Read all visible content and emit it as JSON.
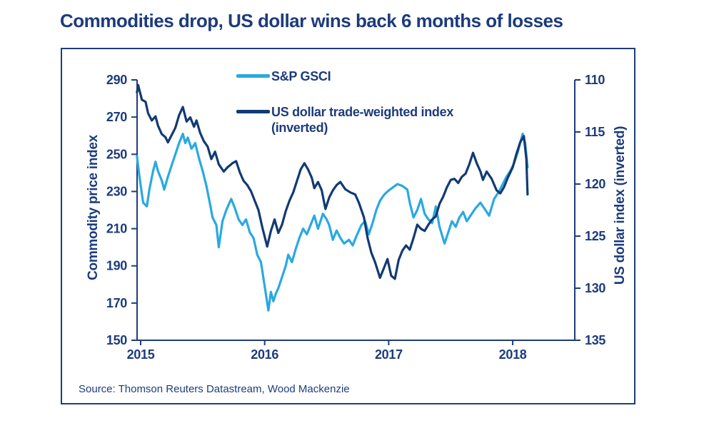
{
  "chart_data": {
    "type": "line",
    "title": "Commodities drop, US dollar wins back 6 months of losses",
    "source": "Source: Thomson Reuters Datastream, Wood Mackenzie",
    "grid": false,
    "legend_position": "top-center-inside",
    "x_axis": {
      "ticks": [
        2015,
        2016,
        2017,
        2018
      ],
      "range": [
        2014.97,
        2018.5
      ]
    },
    "left_axis": {
      "label": "Commodity price index",
      "ticks": [
        290,
        270,
        250,
        230,
        210,
        190,
        170,
        150
      ],
      "range": [
        150,
        290
      ]
    },
    "right_axis": {
      "label": "US dollar index (inverted)",
      "ticks": [
        110,
        115,
        120,
        125,
        130,
        135
      ],
      "range": [
        110,
        135
      ],
      "inverted": true
    },
    "legend": {
      "items": [
        {
          "label": "S&P GSCI",
          "label2": ""
        },
        {
          "label": "US dollar trade-weighted index",
          "label2": "(inverted)"
        }
      ]
    },
    "colors": {
      "gsci_line": "#29a9e1",
      "usd_line": "#123a73",
      "text_navy": "#1c3b7c",
      "axis_navy": "#1e3c7b",
      "card_border": "#1e3c7b"
    },
    "series": [
      {
        "name": "S&P GSCI",
        "axis": "left",
        "color": "#29a9e1",
        "points": [
          [
            2014.97,
            249
          ],
          [
            2014.99,
            238
          ],
          [
            2015.02,
            224
          ],
          [
            2015.05,
            222
          ],
          [
            2015.07,
            231
          ],
          [
            2015.1,
            241
          ],
          [
            2015.12,
            246
          ],
          [
            2015.14,
            241
          ],
          [
            2015.17,
            236
          ],
          [
            2015.19,
            231
          ],
          [
            2015.22,
            238
          ],
          [
            2015.25,
            244
          ],
          [
            2015.28,
            250
          ],
          [
            2015.31,
            256
          ],
          [
            2015.34,
            261
          ],
          [
            2015.36,
            256
          ],
          [
            2015.38,
            259
          ],
          [
            2015.41,
            253
          ],
          [
            2015.44,
            256
          ],
          [
            2015.47,
            248
          ],
          [
            2015.5,
            241
          ],
          [
            2015.53,
            233
          ],
          [
            2015.56,
            223
          ],
          [
            2015.58,
            216
          ],
          [
            2015.61,
            212
          ],
          [
            2015.63,
            200
          ],
          [
            2015.66,
            214
          ],
          [
            2015.69,
            220
          ],
          [
            2015.73,
            226
          ],
          [
            2015.76,
            221
          ],
          [
            2015.79,
            215
          ],
          [
            2015.82,
            212
          ],
          [
            2015.85,
            215
          ],
          [
            2015.88,
            208
          ],
          [
            2015.91,
            205
          ],
          [
            2015.94,
            196
          ],
          [
            2015.97,
            192
          ],
          [
            2016.0,
            179
          ],
          [
            2016.03,
            166
          ],
          [
            2016.05,
            176
          ],
          [
            2016.07,
            171
          ],
          [
            2016.09,
            175
          ],
          [
            2016.11,
            178
          ],
          [
            2016.14,
            184
          ],
          [
            2016.17,
            190
          ],
          [
            2016.19,
            196
          ],
          [
            2016.22,
            192
          ],
          [
            2016.25,
            199
          ],
          [
            2016.28,
            205
          ],
          [
            2016.31,
            210
          ],
          [
            2016.34,
            207
          ],
          [
            2016.37,
            212
          ],
          [
            2016.4,
            217
          ],
          [
            2016.43,
            210
          ],
          [
            2016.45,
            214
          ],
          [
            2016.47,
            218
          ],
          [
            2016.5,
            215
          ],
          [
            2016.52,
            212
          ],
          [
            2016.55,
            204
          ],
          [
            2016.58,
            209
          ],
          [
            2016.61,
            205
          ],
          [
            2016.64,
            202
          ],
          [
            2016.68,
            204
          ],
          [
            2016.71,
            201
          ],
          [
            2016.74,
            206
          ],
          [
            2016.78,
            212
          ],
          [
            2016.81,
            214
          ],
          [
            2016.84,
            207
          ],
          [
            2016.87,
            213
          ],
          [
            2016.9,
            220
          ],
          [
            2016.93,
            225
          ],
          [
            2016.96,
            228
          ],
          [
            2016.99,
            230
          ],
          [
            2017.03,
            232
          ],
          [
            2017.07,
            234
          ],
          [
            2017.11,
            233
          ],
          [
            2017.15,
            231
          ],
          [
            2017.17,
            224
          ],
          [
            2017.2,
            216
          ],
          [
            2017.23,
            220
          ],
          [
            2017.26,
            226
          ],
          [
            2017.29,
            218
          ],
          [
            2017.32,
            215
          ],
          [
            2017.35,
            213
          ],
          [
            2017.38,
            222
          ],
          [
            2017.41,
            211
          ],
          [
            2017.45,
            202
          ],
          [
            2017.48,
            208
          ],
          [
            2017.51,
            214
          ],
          [
            2017.54,
            211
          ],
          [
            2017.57,
            216
          ],
          [
            2017.6,
            219
          ],
          [
            2017.63,
            214
          ],
          [
            2017.66,
            217
          ],
          [
            2017.7,
            221
          ],
          [
            2017.74,
            224
          ],
          [
            2017.78,
            220
          ],
          [
            2017.81,
            217
          ],
          [
            2017.85,
            226
          ],
          [
            2017.89,
            230
          ],
          [
            2017.92,
            234
          ],
          [
            2017.95,
            238
          ],
          [
            2017.98,
            241
          ],
          [
            2018.01,
            245
          ],
          [
            2018.04,
            251
          ],
          [
            2018.06,
            256
          ],
          [
            2018.08,
            261
          ],
          [
            2018.1,
            256
          ],
          [
            2018.12,
            243
          ]
        ]
      },
      {
        "name": "US dollar trade-weighted index (inverted)",
        "axis": "right",
        "color": "#123a73",
        "points": [
          [
            2014.97,
            111.2
          ],
          [
            2014.98,
            110.5
          ],
          [
            2015.01,
            111.9
          ],
          [
            2015.04,
            112.1
          ],
          [
            2015.06,
            113.2
          ],
          [
            2015.09,
            113.9
          ],
          [
            2015.12,
            113.5
          ],
          [
            2015.14,
            114.4
          ],
          [
            2015.17,
            115.2
          ],
          [
            2015.2,
            115.5
          ],
          [
            2015.22,
            116.0
          ],
          [
            2015.25,
            115.3
          ],
          [
            2015.28,
            114.6
          ],
          [
            2015.31,
            113.4
          ],
          [
            2015.34,
            112.6
          ],
          [
            2015.37,
            114.0
          ],
          [
            2015.4,
            113.6
          ],
          [
            2015.43,
            114.5
          ],
          [
            2015.45,
            113.9
          ],
          [
            2015.48,
            115.1
          ],
          [
            2015.51,
            115.9
          ],
          [
            2015.54,
            116.4
          ],
          [
            2015.57,
            117.6
          ],
          [
            2015.6,
            116.9
          ],
          [
            2015.63,
            118.1
          ],
          [
            2015.67,
            118.8
          ],
          [
            2015.7,
            118.4
          ],
          [
            2015.74,
            118.0
          ],
          [
            2015.77,
            117.8
          ],
          [
            2015.8,
            118.9
          ],
          [
            2015.83,
            119.7
          ],
          [
            2015.86,
            120.1
          ],
          [
            2015.89,
            120.7
          ],
          [
            2015.92,
            121.6
          ],
          [
            2015.95,
            122.5
          ],
          [
            2015.98,
            124.1
          ],
          [
            2016.02,
            126.0
          ],
          [
            2016.05,
            124.5
          ],
          [
            2016.08,
            123.4
          ],
          [
            2016.11,
            124.7
          ],
          [
            2016.14,
            123.9
          ],
          [
            2016.17,
            122.6
          ],
          [
            2016.2,
            121.6
          ],
          [
            2016.23,
            120.8
          ],
          [
            2016.26,
            119.7
          ],
          [
            2016.29,
            118.6
          ],
          [
            2016.32,
            118.0
          ],
          [
            2016.35,
            118.6
          ],
          [
            2016.38,
            119.4
          ],
          [
            2016.4,
            120.4
          ],
          [
            2016.43,
            119.8
          ],
          [
            2016.46,
            120.6
          ],
          [
            2016.49,
            122.4
          ],
          [
            2016.52,
            121.3
          ],
          [
            2016.55,
            120.6
          ],
          [
            2016.58,
            120.1
          ],
          [
            2016.61,
            119.8
          ],
          [
            2016.65,
            120.5
          ],
          [
            2016.69,
            120.8
          ],
          [
            2016.73,
            121.0
          ],
          [
            2016.76,
            121.8
          ],
          [
            2016.8,
            123.2
          ],
          [
            2016.83,
            125.2
          ],
          [
            2016.86,
            126.6
          ],
          [
            2016.89,
            127.5
          ],
          [
            2016.93,
            129.0
          ],
          [
            2016.96,
            128.1
          ],
          [
            2016.99,
            127.2
          ],
          [
            2017.02,
            128.8
          ],
          [
            2017.05,
            129.1
          ],
          [
            2017.08,
            127.3
          ],
          [
            2017.11,
            126.4
          ],
          [
            2017.14,
            125.9
          ],
          [
            2017.17,
            126.3
          ],
          [
            2017.2,
            125.2
          ],
          [
            2017.23,
            123.9
          ],
          [
            2017.26,
            124.3
          ],
          [
            2017.29,
            124.5
          ],
          [
            2017.32,
            123.9
          ],
          [
            2017.35,
            123.4
          ],
          [
            2017.38,
            123.1
          ],
          [
            2017.41,
            121.9
          ],
          [
            2017.44,
            121.2
          ],
          [
            2017.47,
            120.3
          ],
          [
            2017.5,
            119.6
          ],
          [
            2017.53,
            119.5
          ],
          [
            2017.56,
            119.9
          ],
          [
            2017.59,
            119.3
          ],
          [
            2017.62,
            119.0
          ],
          [
            2017.65,
            118.1
          ],
          [
            2017.68,
            117.0
          ],
          [
            2017.71,
            118.0
          ],
          [
            2017.74,
            118.8
          ],
          [
            2017.76,
            119.6
          ],
          [
            2017.79,
            118.8
          ],
          [
            2017.83,
            119.5
          ],
          [
            2017.87,
            120.6
          ],
          [
            2017.9,
            120.9
          ],
          [
            2017.93,
            120.3
          ],
          [
            2017.96,
            119.4
          ],
          [
            2018.0,
            118.4
          ],
          [
            2018.03,
            117.1
          ],
          [
            2018.06,
            116.0
          ],
          [
            2018.09,
            115.4
          ],
          [
            2018.11,
            117.6
          ],
          [
            2018.12,
            121.0
          ]
        ]
      }
    ]
  }
}
